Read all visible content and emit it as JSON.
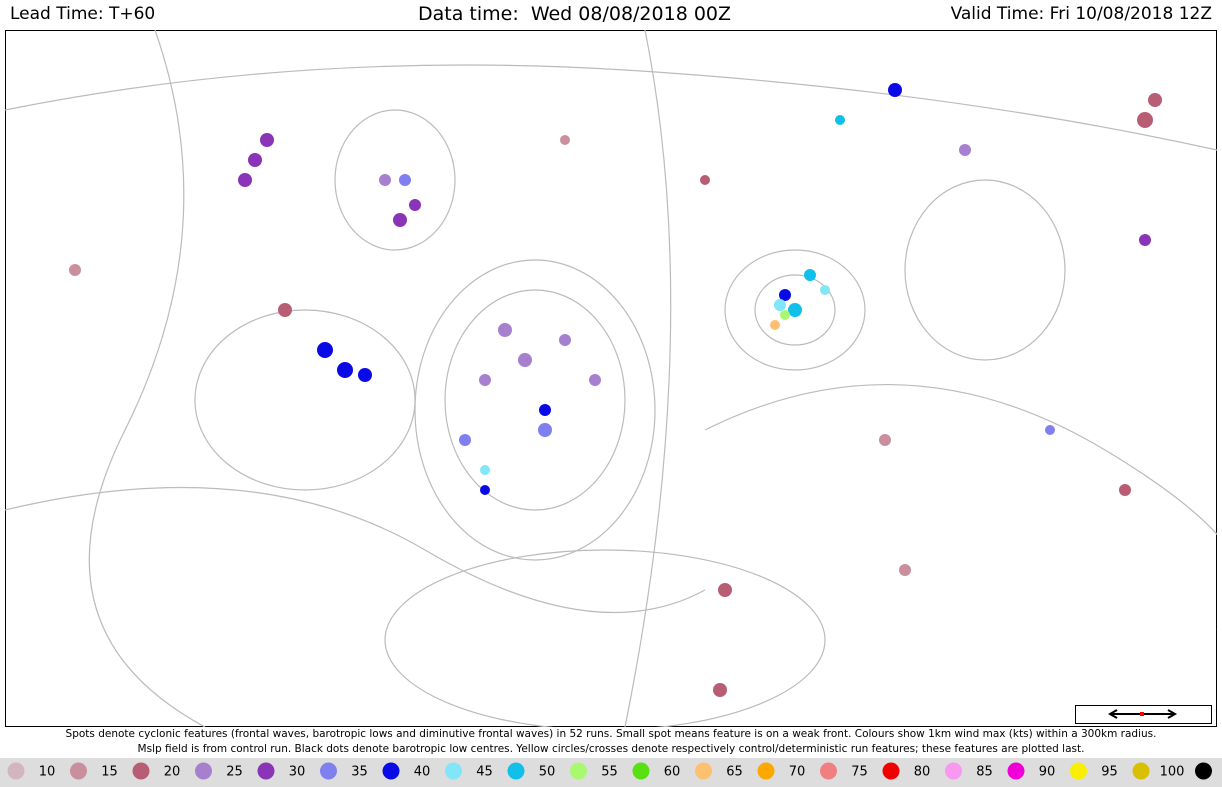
{
  "header": {
    "lead_time": "Lead Time: T+60",
    "data_time": "Data time:  Wed 08/08/2018 00Z",
    "valid_time": "Valid Time: Fri 10/08/2018 12Z"
  },
  "caption": [
    "Spots denote cyclonic features (frontal waves, barotropic lows and diminutive frontal waves) in 52 runs. Small spot means feature is on a weak front. Colours show 1km wind max (kts) within a 300km radius.",
    "Mslp field is from control run. Black dots denote barotropic low centres. Yellow circles/crosses denote respectively control/deterministic run features; these features are plotted last."
  ],
  "legend": {
    "labels": [
      10,
      15,
      20,
      25,
      30,
      35,
      40,
      45,
      50,
      55,
      60,
      65,
      70,
      75,
      80,
      85,
      90,
      95,
      100
    ],
    "colors": [
      "#d4b5bd",
      "#c98f9d",
      "#b85e74",
      "#a77fcf",
      "#8a35b8",
      "#7f7ff0",
      "#0a0ae6",
      "#80e6f8",
      "#10c0e8",
      "#a8f870",
      "#58e010",
      "#fcc070",
      "#fca800",
      "#f08080",
      "#f00000",
      "#f898f0",
      "#f000d8",
      "#f8f000",
      "#d8c000",
      "#000000"
    ]
  }
}
